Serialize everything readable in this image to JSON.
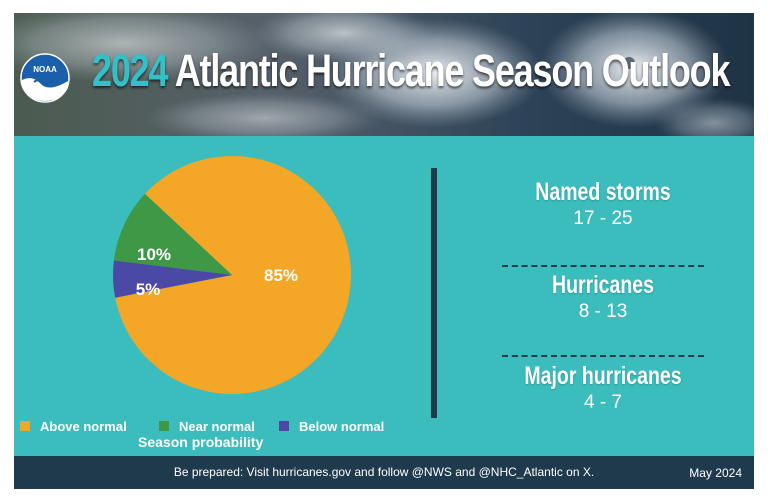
{
  "header": {
    "logo_text": "NOAA",
    "title_year": "2024",
    "title_rest": "Atlantic Hurricane Season Outlook"
  },
  "chart_data": {
    "type": "pie",
    "title": "",
    "slices": [
      {
        "label": "Above normal",
        "value": 85,
        "display": "85%",
        "color": "#f4a626"
      },
      {
        "label": "Near normal",
        "value": 10,
        "display": "10%",
        "color": "#3e9846"
      },
      {
        "label": "Below normal",
        "value": 5,
        "display": "5%",
        "color": "#4a49a6"
      }
    ],
    "legend_position": "bottom",
    "caption": "Season probability"
  },
  "stats": [
    {
      "label": "Named storms",
      "value": "17 - 25"
    },
    {
      "label": "Hurricanes",
      "value": "8 - 13"
    },
    {
      "label": "Major hurricanes",
      "value": "4 - 7"
    }
  ],
  "footer": {
    "message": "Be prepared: Visit hurricanes.gov and follow @NWS and @NHC_Atlantic on X.",
    "date": "May 2024"
  }
}
